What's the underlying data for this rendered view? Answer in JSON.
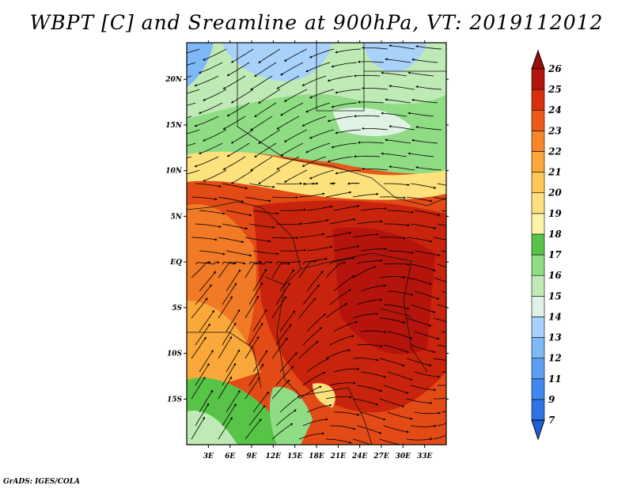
{
  "title": "WBPT [C] and Sreamline at 900hPa, VT: 2019112012",
  "credit": "GrADS: IGES/COLA",
  "map": {
    "lon_range": [
      0,
      36
    ],
    "lat_range": [
      -20,
      24
    ],
    "lon_ticks": [
      "3E",
      "6E",
      "9E",
      "12E",
      "15E",
      "18E",
      "21E",
      "24E",
      "27E",
      "30E",
      "33E"
    ],
    "lat_ticks": [
      "20N",
      "15N",
      "10N",
      "5N",
      "EQ",
      "5S",
      "10S",
      "15S"
    ]
  },
  "colorbar": {
    "levels": [
      "7",
      "9",
      "11",
      "12",
      "13",
      "14",
      "15",
      "16",
      "17",
      "18",
      "19",
      "20",
      "21",
      "22",
      "23",
      "24",
      "25",
      "26"
    ],
    "colors": [
      "#1f5fd6",
      "#2d73e6",
      "#3e88ee",
      "#5a9ff2",
      "#7fb8f6",
      "#a9d2fa",
      "#dff3e4",
      "#bfeab5",
      "#8fdc84",
      "#57c447",
      "#fbf3a8",
      "#fde17c",
      "#fdc857",
      "#fba83a",
      "#f7862a",
      "#ee5a1c",
      "#d8300f",
      "#b4140c",
      "#960f08"
    ]
  },
  "colors": {
    "frame": "#000000",
    "streamline": "#000000",
    "border": "#111111"
  }
}
